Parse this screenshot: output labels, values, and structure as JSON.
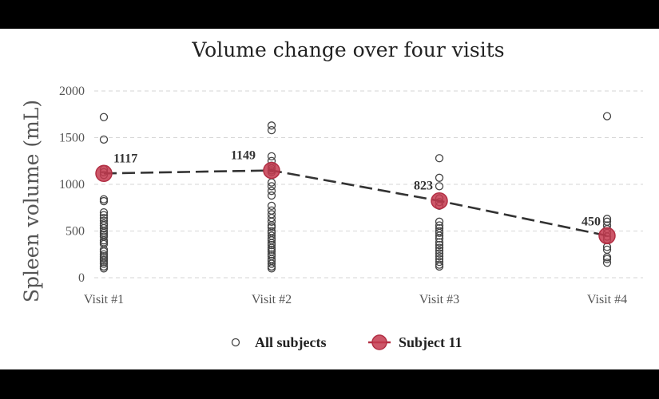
{
  "chart_data": {
    "type": "scatter",
    "title": "Volume change over four visits",
    "xlabel": "",
    "ylabel": "Spleen volume (mL)",
    "categories": [
      "Visit #1",
      "Visit #2",
      "Visit #3",
      "Visit #4"
    ],
    "ylim": [
      0,
      2000
    ],
    "yticks": [
      0,
      500,
      1000,
      1500,
      2000
    ],
    "grid": true,
    "legend_position": "bottom-center",
    "series": [
      {
        "name": "All subjects",
        "marker": "hollow-circle",
        "color": "#444444",
        "points": {
          "Visit #1": [
            1720,
            1480,
            1160,
            1130,
            1100,
            840,
            820,
            700,
            670,
            640,
            610,
            580,
            560,
            530,
            500,
            480,
            460,
            440,
            400,
            380,
            360,
            300,
            280,
            250,
            230,
            210,
            190,
            170,
            150,
            120,
            100
          ],
          "Visit #2": [
            1630,
            1580,
            1300,
            1250,
            1200,
            1170,
            1150,
            1130,
            1020,
            980,
            930,
            880,
            770,
            720,
            680,
            640,
            600,
            560,
            540,
            500,
            480,
            450,
            420,
            400,
            370,
            350,
            320,
            300,
            280,
            250,
            230,
            200,
            180,
            150,
            120,
            100
          ],
          "Visit #3": [
            1280,
            1070,
            980,
            850,
            810,
            770,
            600,
            560,
            530,
            500,
            480,
            450,
            420,
            380,
            350,
            320,
            290,
            260,
            230,
            200,
            170,
            140,
            120
          ],
          "Visit #4": [
            1730,
            630,
            600,
            560,
            520,
            480,
            440,
            410,
            330,
            300,
            220,
            200,
            160
          ]
        }
      },
      {
        "name": "Subject 11",
        "marker": "filled-circle",
        "color": "#c43a4f",
        "line": "dashed",
        "values": [
          1117,
          1149,
          823,
          450
        ],
        "labels": [
          "1117",
          "1149",
          "823",
          "450"
        ]
      }
    ]
  }
}
